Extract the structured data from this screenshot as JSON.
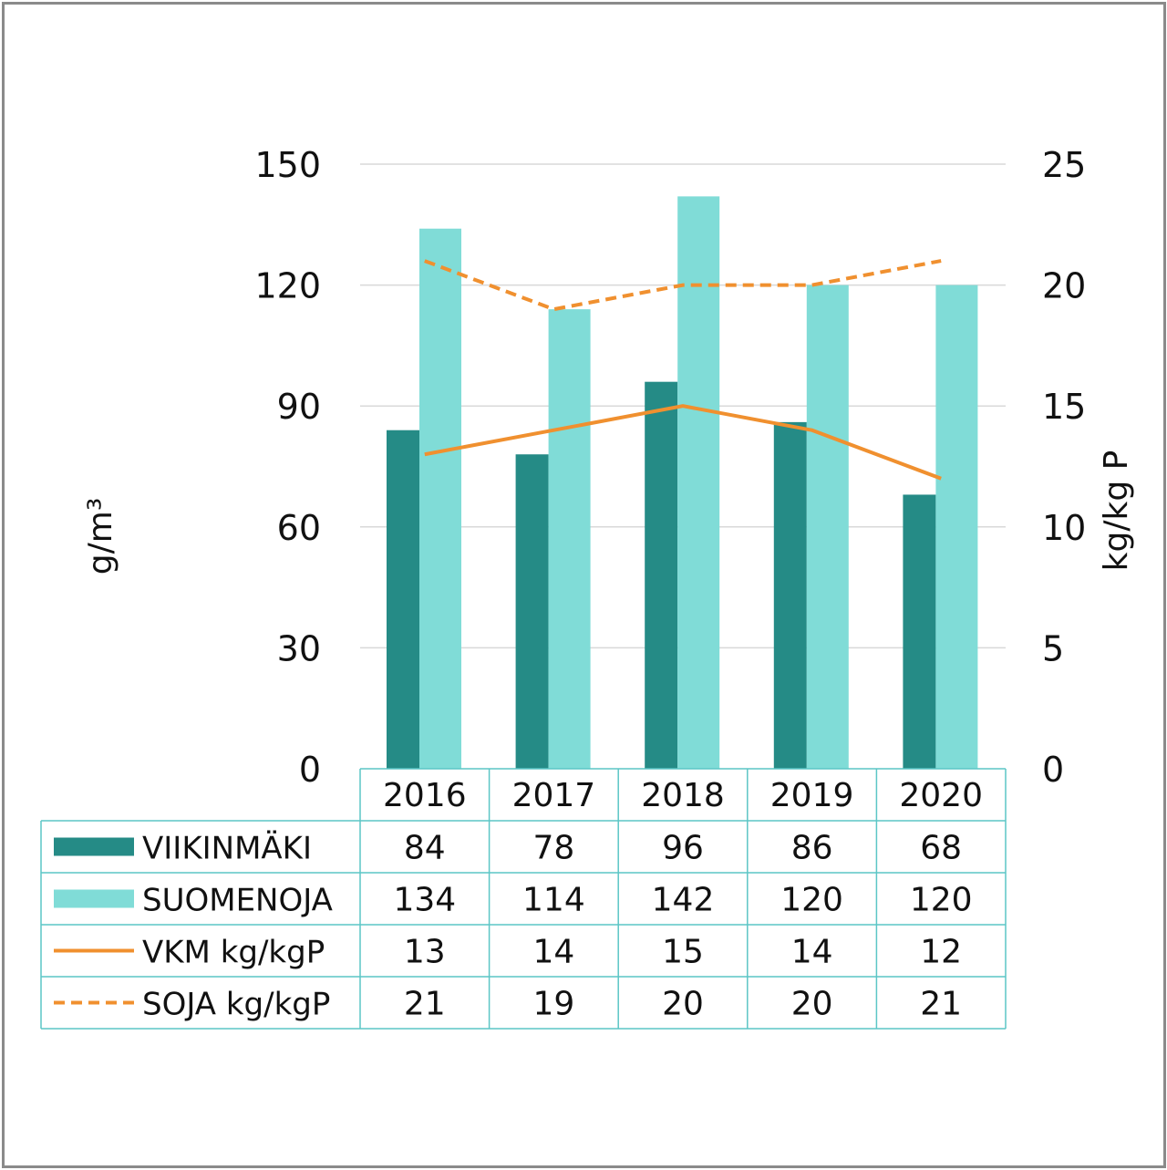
{
  "chart_data": {
    "type": "bar",
    "categories": [
      "2016",
      "2017",
      "2018",
      "2019",
      "2020"
    ],
    "series": [
      {
        "name": "VIIKINMÄKI",
        "type": "bar",
        "axis": "left",
        "color": "#258b86",
        "values": [
          84,
          78,
          96,
          86,
          68
        ]
      },
      {
        "name": "SUOMENOJA",
        "type": "bar",
        "axis": "left",
        "color": "#80dcd7",
        "values": [
          134,
          114,
          142,
          120,
          120
        ]
      },
      {
        "name": "VKM kg/kgP",
        "type": "line",
        "axis": "right",
        "color": "#f0902f",
        "dash": false,
        "values": [
          13,
          14,
          15,
          14,
          12
        ]
      },
      {
        "name": "SOJA kg/kgP",
        "type": "line",
        "axis": "right",
        "color": "#f0902f",
        "dash": true,
        "values": [
          21,
          19,
          20,
          20,
          21
        ]
      }
    ],
    "ylabel": "g/m³",
    "ylabel_right": "kg/kg P",
    "ylim": [
      0,
      150
    ],
    "yticks": [
      "0",
      "30",
      "60",
      "90",
      "120",
      "150"
    ],
    "ylim_right": [
      0,
      25
    ],
    "yticks_right": [
      "0",
      "5",
      "10",
      "15",
      "20",
      "25"
    ],
    "grid": true,
    "legend": "data-table"
  }
}
